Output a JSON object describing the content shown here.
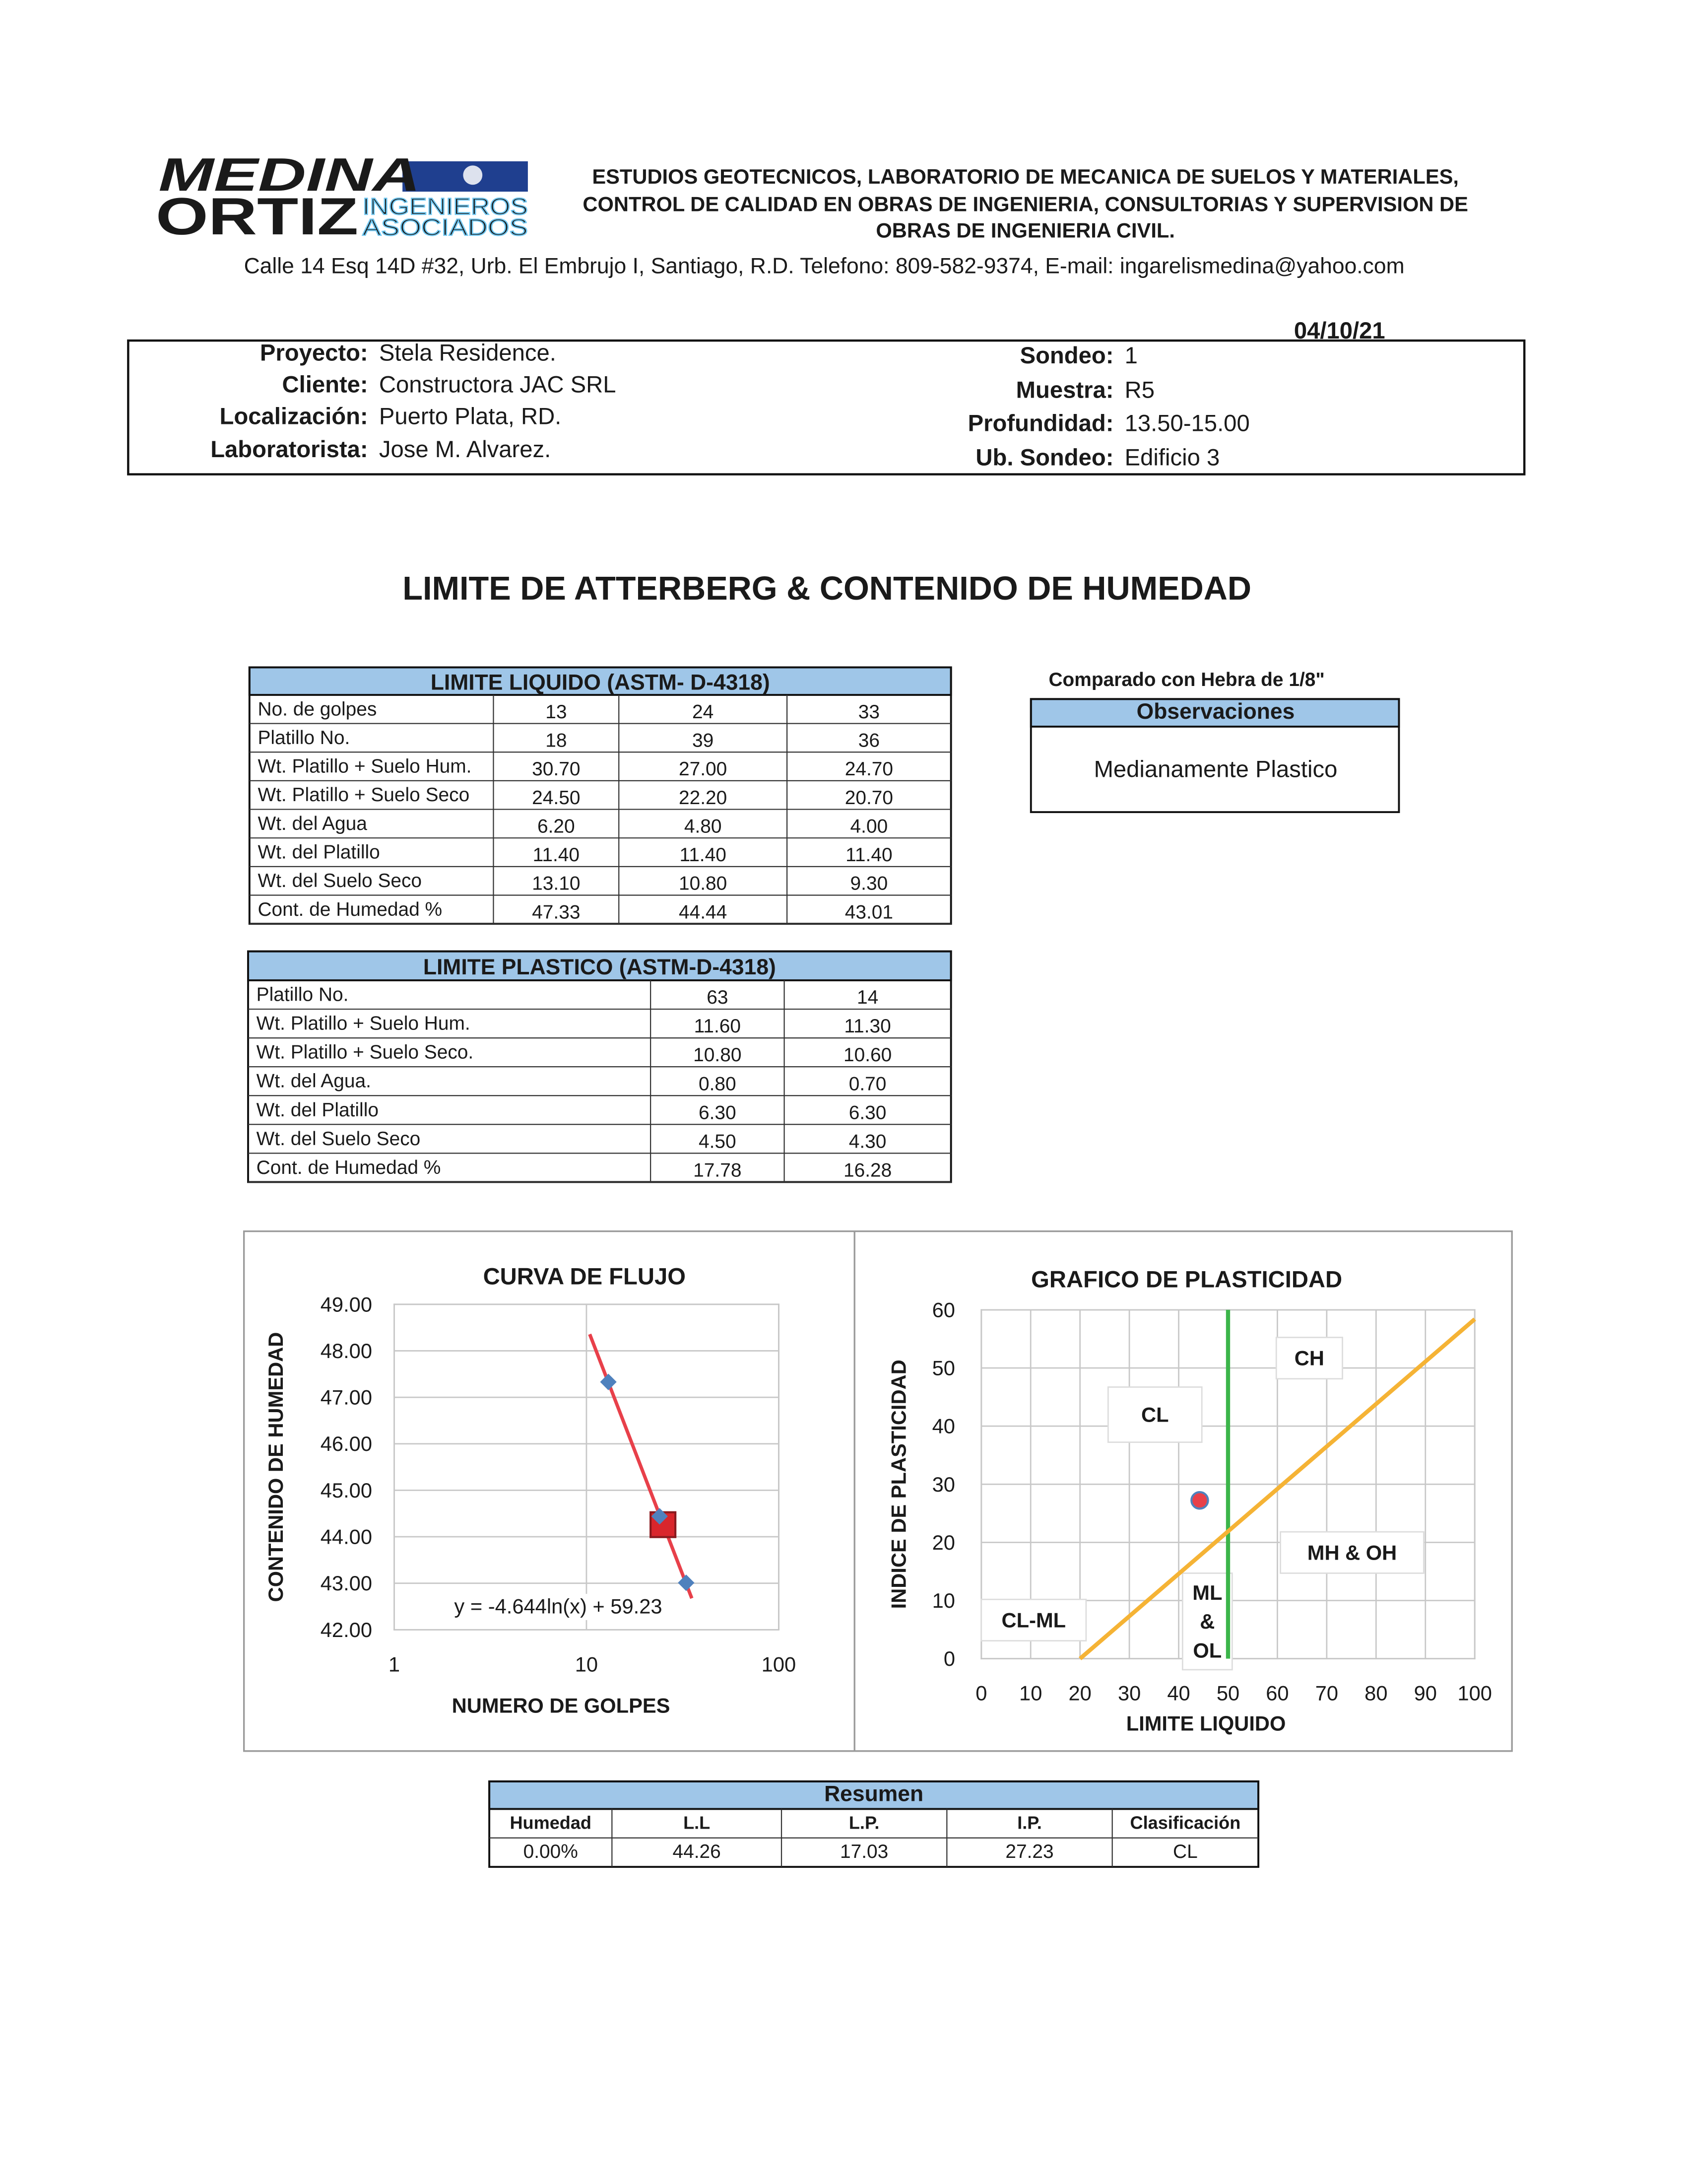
{
  "logo": {
    "top": "MEDINA",
    "bottom": "ORTIZ",
    "line1": "INGENIEROS",
    "line2": "ASOCIADOS"
  },
  "header": {
    "lines": [
      "ESTUDIOS GEOTECNICOS, LABORATORIO DE MECANICA DE SUELOS Y MATERIALES,",
      "CONTROL DE CALIDAD EN OBRAS DE INGENIERIA, CONSULTORIAS Y SUPERVISION DE",
      "OBRAS DE INGENIERIA CIVIL."
    ],
    "address": "Calle 14 Esq 14D #32, Urb. El Embrujo I, Santiago, R.D. Telefono: 809-582-9374, E-mail: ingarelismedina@yahoo.com"
  },
  "date": "04/10/21",
  "info": {
    "left": [
      {
        "label": "Proyecto:",
        "value": "Stela Residence."
      },
      {
        "label": "Cliente:",
        "value": "Constructora JAC SRL"
      },
      {
        "label": "Localización:",
        "value": "Puerto Plata, RD."
      },
      {
        "label": "Laboratorista:",
        "value": "Jose M. Alvarez."
      }
    ],
    "right": [
      {
        "label": "Sondeo:",
        "value": "1"
      },
      {
        "label": "Muestra:",
        "value": "R5"
      },
      {
        "label": "Profundidad:",
        "value": "13.50-15.00"
      },
      {
        "label": "Ub. Sondeo:",
        "value": "Edificio 3"
      }
    ]
  },
  "title": "LIMITE DE ATTERBERG & CONTENIDO DE HUMEDAD",
  "liquid_limit": {
    "title": "LIMITE LIQUIDO (ASTM- D-4318)",
    "rows": [
      {
        "label": "No. de golpes",
        "values": [
          "13",
          "24",
          "33"
        ]
      },
      {
        "label": "Platillo No.",
        "values": [
          "18",
          "39",
          "36"
        ]
      },
      {
        "label": "Wt. Platillo + Suelo Hum.",
        "values": [
          "30.70",
          "27.00",
          "24.70"
        ]
      },
      {
        "label": "Wt. Platillo + Suelo Seco",
        "values": [
          "24.50",
          "22.20",
          "20.70"
        ]
      },
      {
        "label": "Wt. del Agua",
        "values": [
          "6.20",
          "4.80",
          "4.00"
        ]
      },
      {
        "label": "Wt. del Platillo",
        "values": [
          "11.40",
          "11.40",
          "11.40"
        ]
      },
      {
        "label": "Wt. del Suelo Seco",
        "values": [
          "13.10",
          "10.80",
          "9.30"
        ]
      },
      {
        "label": "Cont. de Humedad %",
        "values": [
          "47.33",
          "44.44",
          "43.01"
        ]
      }
    ]
  },
  "plastic_limit": {
    "title": "LIMITE PLASTICO (ASTM-D-4318)",
    "rows": [
      {
        "label": "Platillo No.",
        "values": [
          "63",
          "14"
        ]
      },
      {
        "label": "Wt. Platillo + Suelo Hum.",
        "values": [
          "11.60",
          "11.30"
        ]
      },
      {
        "label": "Wt. Platillo + Suelo Seco.",
        "values": [
          "10.80",
          "10.60"
        ]
      },
      {
        "label": "Wt. del Agua.",
        "values": [
          "0.80",
          "0.70"
        ]
      },
      {
        "label": "Wt. del Platillo",
        "values": [
          "6.30",
          "6.30"
        ]
      },
      {
        "label": "Wt. del Suelo Seco",
        "values": [
          "4.50",
          "4.30"
        ]
      },
      {
        "label": "Cont. de Humedad %",
        "values": [
          "17.78",
          "16.28"
        ]
      }
    ]
  },
  "observations": {
    "note": "Comparado con Hebra de 1/8\"",
    "header": "Observaciones",
    "text": "Medianamente Plastico"
  },
  "chart_data": [
    {
      "type": "scatter",
      "title": "CURVA DE FLUJO",
      "x_label": "NUMERO DE GOLPES",
      "y_label": "CONTENIDO DE HUMEDAD",
      "x": [
        13,
        24,
        33
      ],
      "values": [
        47.33,
        44.44,
        43.01
      ],
      "color": "#4f81bd",
      "trendline_color": "#e8404a",
      "equation": "y = -4.644ln(x) + 59.23",
      "liquid_limit_point": {
        "x": 25,
        "y": 44.26,
        "color": "#d9262c"
      },
      "x_log": true,
      "xlim": [
        1,
        100
      ],
      "xticks": [
        1,
        10,
        100
      ],
      "ylim": [
        42,
        49
      ],
      "yticks": [
        {
          "value": 42,
          "label": "42.00"
        },
        {
          "value": 43,
          "label": "43.00"
        },
        {
          "value": 44,
          "label": "44.00"
        },
        {
          "value": 45,
          "label": "45.00"
        },
        {
          "value": 46,
          "label": "46.00"
        },
        {
          "value": 47,
          "label": "47.00"
        },
        {
          "value": 48,
          "label": "48.00"
        },
        {
          "value": 49,
          "label": "49.00"
        }
      ],
      "grid": true
    },
    {
      "type": "line",
      "title": "GRAFICO DE PLASTICIDAD",
      "x_label": "LIMITE LIQUIDO",
      "y_label": "INDICE DE PLASTICIDAD",
      "series": [
        {
          "type": "line",
          "color": "#f5b335",
          "x": [
            20,
            100
          ],
          "values": [
            0,
            58.4
          ]
        },
        {
          "type": "scatter",
          "color": "#e8404a",
          "x": [
            44.26
          ],
          "values": [
            27.23
          ]
        }
      ],
      "vline": {
        "x": 50,
        "color": "#3cb54a"
      },
      "regions": [
        "CH",
        "CL",
        "MH & OH",
        "CL-ML",
        [
          "ML",
          "&",
          "OL"
        ]
      ],
      "xlim": [
        0,
        100
      ],
      "xticks": [
        0,
        10,
        20,
        30,
        40,
        50,
        60,
        70,
        80,
        90,
        100
      ],
      "ylim": [
        0,
        60
      ],
      "yticks": [
        0,
        10,
        20,
        30,
        40,
        50,
        60
      ],
      "grid": true
    }
  ],
  "summary": {
    "title": "Resumen",
    "headers": [
      "Humedad",
      "L.L",
      "L.P.",
      "I.P.",
      "Clasificación"
    ],
    "values": [
      "0.00%",
      "44.26",
      "17.03",
      "27.23",
      "CL"
    ]
  }
}
